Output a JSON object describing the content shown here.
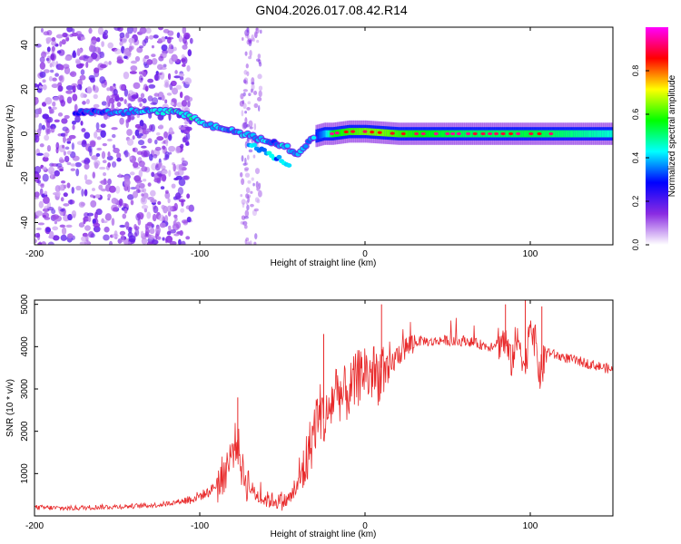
{
  "title": "GN04.2026.017.08.42.R14",
  "colors": {
    "snr_line": "#e8292a",
    "axis": "#000000"
  },
  "chart_data": [
    {
      "type": "heatmap",
      "name": "spectrogram",
      "xlabel": "Height of straight line (km)",
      "ylabel": "Frequency (Hz)",
      "xlim": [
        -200,
        150
      ],
      "ylim": [
        -50,
        48
      ],
      "xticks": [
        -200,
        -100,
        0,
        100
      ],
      "xtick_labels": [
        "-200",
        "-100",
        "0",
        "100"
      ],
      "yticks": [
        -40,
        -20,
        0,
        20,
        40
      ],
      "ytick_labels": [
        "-40",
        "-20",
        "0",
        "20",
        "40"
      ],
      "colorbar": {
        "label": "Normalized spectral amplitude",
        "range": [
          0,
          1
        ],
        "ticks": [
          0,
          0.2,
          0.4,
          0.6,
          0.8
        ],
        "tick_labels": [
          "0.0",
          "0.2",
          "0.4",
          "0.6",
          "0.8"
        ],
        "colormap": [
          "#ffffff",
          "#8a2be2",
          "#0000ff",
          "#00ffff",
          "#00ff00",
          "#ffff00",
          "#ff0000",
          "#ff00ff"
        ]
      },
      "ridge": {
        "description": "frequency of main signal ridge vs height",
        "x": [
          -200,
          -170,
          -150,
          -130,
          -120,
          -110,
          -105,
          -100,
          -95,
          -90,
          -85,
          -80,
          -75,
          -70,
          -65,
          -60,
          -55,
          -50,
          -45,
          -40,
          -35,
          -30,
          -25,
          -20,
          -10,
          0,
          10,
          20,
          40,
          60,
          80,
          100,
          120,
          150
        ],
        "y": [
          10,
          10,
          10,
          10,
          10,
          9,
          8,
          6,
          4,
          3,
          2,
          1,
          0,
          -1,
          -2,
          -3,
          -4,
          -5,
          -7,
          -9,
          -4,
          -1,
          0,
          0,
          1,
          1,
          0.5,
          0,
          0,
          0,
          0,
          0,
          0,
          0
        ],
        "amplitude": [
          0.2,
          0.3,
          0.35,
          0.4,
          0.45,
          0.45,
          0.5,
          0.45,
          0.4,
          0.4,
          0.38,
          0.38,
          0.4,
          0.45,
          0.4,
          0.4,
          0.35,
          0.45,
          0.4,
          0.38,
          0.35,
          0.4,
          0.5,
          0.75,
          0.8,
          0.85,
          0.85,
          0.8,
          0.75,
          0.7,
          0.7,
          0.72,
          0.68,
          0.6
        ]
      }
    },
    {
      "type": "line",
      "name": "snr",
      "xlabel": "Height of straight line (km)",
      "ylabel": "SNR (10 * v/v)",
      "xlim": [
        -200,
        150
      ],
      "ylim": [
        0,
        5100
      ],
      "xticks": [
        -200,
        -100,
        0,
        100
      ],
      "xtick_labels": [
        "-200",
        "-100",
        "0",
        "100"
      ],
      "yticks": [
        1000,
        2000,
        3000,
        4000,
        5000
      ],
      "ytick_labels": [
        "1000",
        "2000",
        "3000",
        "4000",
        "5000"
      ],
      "series": [
        {
          "name": "SNR",
          "x": [
            -200,
            -180,
            -160,
            -140,
            -125,
            -115,
            -105,
            -95,
            -88,
            -82,
            -78,
            -76,
            -74,
            -70,
            -66,
            -62,
            -58,
            -54,
            -50,
            -46,
            -42,
            -38,
            -34,
            -30,
            -27,
            -24,
            -20,
            -17,
            -14,
            -11,
            -8,
            -5,
            -2,
            0,
            2,
            5,
            8,
            11,
            13,
            15,
            18,
            22,
            26,
            30,
            35,
            40,
            45,
            50,
            55,
            60,
            65,
            70,
            75,
            80,
            84,
            86,
            88,
            91,
            94,
            97,
            100,
            103,
            106,
            110,
            115,
            120,
            125,
            130,
            135,
            140,
            145,
            150
          ],
          "y": [
            200,
            180,
            210,
            230,
            260,
            320,
            400,
            550,
            800,
            1300,
            1800,
            1500,
            1000,
            700,
            500,
            400,
            380,
            360,
            320,
            400,
            600,
            1000,
            1500,
            2200,
            2500,
            2200,
            2700,
            3100,
            2800,
            2900,
            3000,
            3200,
            3400,
            3500,
            3300,
            3400,
            3300,
            3600,
            3000,
            3500,
            3700,
            3900,
            4000,
            4100,
            4150,
            4100,
            4150,
            4150,
            4100,
            4150,
            4100,
            4050,
            4000,
            4100,
            4150,
            4000,
            3600,
            4050,
            4100,
            3400,
            4700,
            4100,
            3300,
            3900,
            3800,
            3750,
            3700,
            3650,
            3600,
            3550,
            3500,
            3450
          ],
          "peaks": [
            {
              "x": -77,
              "y": 2800
            },
            {
              "x": -25,
              "y": 4300
            },
            {
              "x": 10,
              "y": 5000
            },
            {
              "x": 85,
              "y": 5000
            },
            {
              "x": 97,
              "y": 5100
            },
            {
              "x": 107,
              "y": 4950
            }
          ]
        }
      ]
    }
  ]
}
